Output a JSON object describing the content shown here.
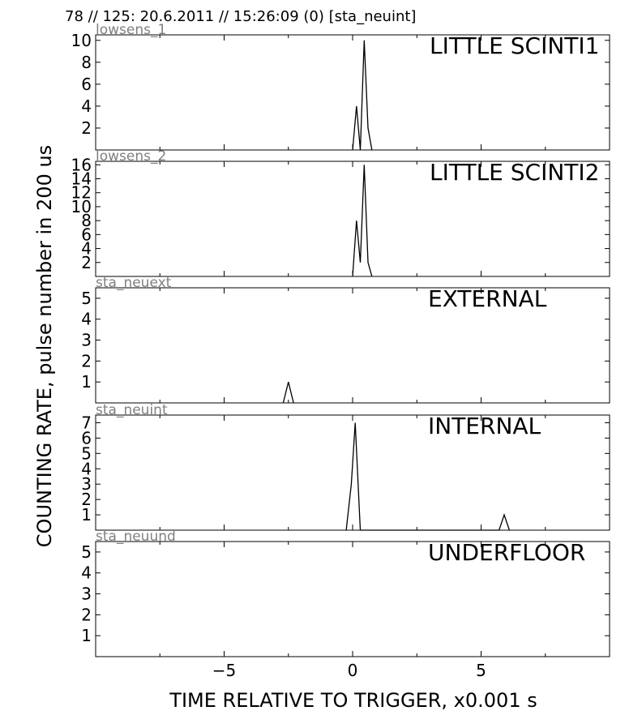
{
  "header": "78 // 125:   20.6.2011 // 15:26:09 (0)  [sta_neuint]",
  "chart_data": {
    "type": "line",
    "xlabel": "TIME RELATIVE TO TRIGGER,   x0.001 s",
    "ylabel": "COUNTING RATE,   pulse number in 200 us",
    "xlim": [
      -10,
      10
    ],
    "x_ticks": [
      -5,
      0,
      5
    ],
    "x_tick_labels": [
      "−5",
      "0",
      "5"
    ],
    "line_color": "#000000",
    "panels": [
      {
        "id": "lowsens_1",
        "title": "LITTLE SCINTI1",
        "ylim": [
          0,
          10.5
        ],
        "y_ticks": [
          2,
          4,
          6,
          8,
          10
        ],
        "x": [
          0.0,
          0.15,
          0.3,
          0.45,
          0.6,
          0.75
        ],
        "y": [
          0,
          4,
          0,
          10,
          2,
          0
        ]
      },
      {
        "id": "lowsens_2",
        "title": "LITTLE SCINTI2",
        "ylim": [
          0,
          16.5
        ],
        "y_ticks": [
          2,
          4,
          6,
          8,
          10,
          12,
          14,
          16
        ],
        "x": [
          0.0,
          0.15,
          0.3,
          0.45,
          0.6,
          0.75
        ],
        "y": [
          0,
          8,
          2,
          16,
          2,
          0
        ]
      },
      {
        "id": "sta_neuext",
        "title": "EXTERNAL",
        "ylim": [
          0,
          5.5
        ],
        "y_ticks": [
          1,
          2,
          3,
          4,
          5
        ],
        "x": [
          -2.7,
          -2.5,
          -2.3
        ],
        "y": [
          0,
          1,
          0
        ]
      },
      {
        "id": "sta_neuint",
        "title": "INTERNAL",
        "ylim": [
          0,
          7.5
        ],
        "y_ticks": [
          1,
          2,
          3,
          4,
          5,
          6,
          7
        ],
        "x": [
          -0.25,
          -0.05,
          0.1,
          0.3,
          5.7,
          5.9,
          6.1
        ],
        "y": [
          0,
          3,
          7,
          0,
          0,
          1,
          0
        ]
      },
      {
        "id": "sta_neuund",
        "title": "UNDERFLOOR",
        "ylim": [
          0,
          5.5
        ],
        "y_ticks": [
          1,
          2,
          3,
          4,
          5
        ],
        "x": [],
        "y": []
      }
    ]
  }
}
